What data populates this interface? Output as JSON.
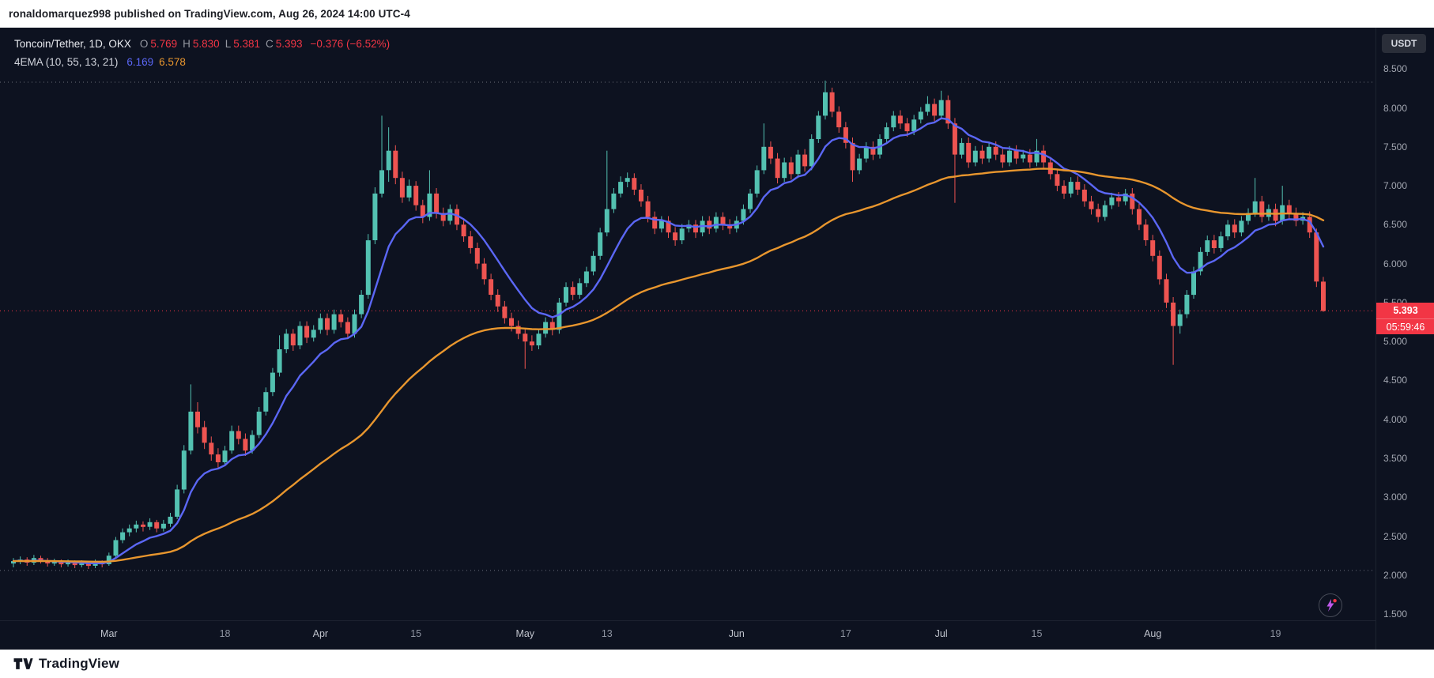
{
  "header": {
    "publish_line": "ronaldomarquez998 published on TradingView.com, Aug 26, 2024 14:00 UTC-4"
  },
  "footer": {
    "brand": "TradingView"
  },
  "legend": {
    "symbol": "Toncoin/Tether, 1D, OKX",
    "o_label": "O",
    "o": "5.769",
    "h_label": "H",
    "h": "5.830",
    "l_label": "L",
    "l": "5.381",
    "c_label": "C",
    "c": "5.393",
    "change": "−0.376 (−6.52%)",
    "indicator": "4EMA (10, 55, 13, 21)",
    "ema_fast": "6.169",
    "ema_slow": "6.578"
  },
  "axis": {
    "currency": "USDT",
    "price_ticks": [
      "8.500",
      "8.000",
      "7.500",
      "7.000",
      "6.500",
      "6.000",
      "5.500",
      "5.000",
      "4.500",
      "4.000",
      "3.500",
      "3.000",
      "2.500",
      "2.000",
      "1.500"
    ],
    "last_price": "5.393",
    "countdown": "05:59:46"
  },
  "chart_data": {
    "type": "candlestick",
    "title": "Toncoin/Tether, 1D, OKX",
    "ylabel": "Price (USDT)",
    "ylim": [
      1.42,
      9.03
    ],
    "grid": false,
    "current_price": 5.393,
    "last_candle": {
      "open": 5.769,
      "high": 5.83,
      "low": 5.381,
      "close": 5.393,
      "change": -0.376,
      "change_pct": -6.52
    },
    "colors": {
      "up": "#53c1b1",
      "down": "#ee5451",
      "badge": "#f23645",
      "level_gray": "#6a6e79"
    },
    "overlays": [
      {
        "name": "EMA fast",
        "period": 10,
        "color": "#5b67f5",
        "value": 6.169
      },
      {
        "name": "EMA slow",
        "period": 55,
        "color": "#e8962e",
        "value": 6.578
      }
    ],
    "dotted_levels": [
      {
        "price": 8.33,
        "color": "#6a6e79"
      },
      {
        "price": 5.393,
        "color": "#f23645"
      },
      {
        "price": 2.06,
        "color": "#6a6e79"
      }
    ],
    "time_ticks": [
      {
        "label": "Mar",
        "index": 14,
        "month": true
      },
      {
        "label": "18",
        "index": 31,
        "month": false
      },
      {
        "label": "Apr",
        "index": 45,
        "month": true
      },
      {
        "label": "15",
        "index": 59,
        "month": false
      },
      {
        "label": "May",
        "index": 75,
        "month": true
      },
      {
        "label": "13",
        "index": 87,
        "month": false
      },
      {
        "label": "Jun",
        "index": 106,
        "month": true
      },
      {
        "label": "17",
        "index": 122,
        "month": false
      },
      {
        "label": "Jul",
        "index": 136,
        "month": true
      },
      {
        "label": "15",
        "index": 150,
        "month": false
      },
      {
        "label": "Aug",
        "index": 167,
        "month": true
      },
      {
        "label": "19",
        "index": 185,
        "month": false
      }
    ],
    "candles": [
      [
        2.15,
        2.22,
        2.1,
        2.18
      ],
      [
        2.18,
        2.24,
        2.14,
        2.2
      ],
      [
        2.2,
        2.23,
        2.12,
        2.16
      ],
      [
        2.16,
        2.26,
        2.13,
        2.22
      ],
      [
        2.22,
        2.25,
        2.15,
        2.19
      ],
      [
        2.19,
        2.22,
        2.11,
        2.15
      ],
      [
        2.15,
        2.21,
        2.12,
        2.17
      ],
      [
        2.17,
        2.2,
        2.1,
        2.14
      ],
      [
        2.14,
        2.2,
        2.11,
        2.16
      ],
      [
        2.16,
        2.19,
        2.09,
        2.13
      ],
      [
        2.13,
        2.19,
        2.1,
        2.15
      ],
      [
        2.15,
        2.18,
        2.08,
        2.12
      ],
      [
        2.12,
        2.2,
        2.09,
        2.16
      ],
      [
        2.16,
        2.19,
        2.1,
        2.14
      ],
      [
        2.14,
        2.29,
        2.12,
        2.25
      ],
      [
        2.25,
        2.49,
        2.22,
        2.45
      ],
      [
        2.45,
        2.6,
        2.41,
        2.55
      ],
      [
        2.55,
        2.65,
        2.5,
        2.6
      ],
      [
        2.6,
        2.7,
        2.55,
        2.65
      ],
      [
        2.65,
        2.69,
        2.56,
        2.62
      ],
      [
        2.62,
        2.73,
        2.58,
        2.68
      ],
      [
        2.68,
        2.71,
        2.55,
        2.6
      ],
      [
        2.6,
        2.71,
        2.56,
        2.66
      ],
      [
        2.66,
        2.8,
        2.62,
        2.75
      ],
      [
        2.75,
        3.16,
        2.72,
        3.1
      ],
      [
        3.1,
        3.67,
        3.05,
        3.6
      ],
      [
        3.6,
        4.45,
        3.55,
        4.1
      ],
      [
        4.1,
        4.22,
        3.82,
        3.9
      ],
      [
        3.9,
        3.98,
        3.62,
        3.7
      ],
      [
        3.7,
        3.78,
        3.47,
        3.55
      ],
      [
        3.55,
        3.63,
        3.38,
        3.45
      ],
      [
        3.45,
        3.66,
        3.41,
        3.6
      ],
      [
        3.6,
        3.92,
        3.56,
        3.85
      ],
      [
        3.85,
        3.92,
        3.68,
        3.75
      ],
      [
        3.75,
        3.82,
        3.53,
        3.6
      ],
      [
        3.6,
        3.86,
        3.56,
        3.8
      ],
      [
        3.8,
        4.16,
        3.76,
        4.1
      ],
      [
        4.1,
        4.41,
        4.05,
        4.35
      ],
      [
        4.35,
        4.66,
        4.3,
        4.6
      ],
      [
        4.6,
        5.08,
        4.55,
        4.9
      ],
      [
        4.9,
        5.16,
        4.85,
        5.1
      ],
      [
        5.1,
        5.16,
        4.88,
        4.95
      ],
      [
        4.95,
        5.26,
        4.9,
        5.2
      ],
      [
        5.2,
        5.26,
        4.98,
        5.05
      ],
      [
        5.05,
        5.21,
        5.0,
        5.15
      ],
      [
        5.15,
        5.36,
        5.1,
        5.3
      ],
      [
        5.3,
        5.36,
        5.08,
        5.15
      ],
      [
        5.15,
        5.41,
        5.1,
        5.35
      ],
      [
        5.35,
        5.41,
        5.18,
        5.25
      ],
      [
        5.25,
        5.31,
        5.03,
        5.1
      ],
      [
        5.1,
        5.41,
        5.05,
        5.35
      ],
      [
        5.35,
        5.66,
        5.3,
        5.6
      ],
      [
        5.6,
        6.38,
        5.55,
        6.3
      ],
      [
        6.3,
        6.98,
        6.25,
        6.9
      ],
      [
        6.9,
        7.9,
        6.85,
        7.2
      ],
      [
        7.2,
        7.75,
        7.05,
        7.45
      ],
      [
        7.45,
        7.52,
        7.02,
        7.1
      ],
      [
        7.1,
        7.18,
        6.78,
        6.85
      ],
      [
        6.85,
        7.08,
        6.8,
        7.0
      ],
      [
        7.0,
        7.06,
        6.68,
        6.75
      ],
      [
        6.75,
        6.82,
        6.52,
        6.6
      ],
      [
        6.6,
        7.2,
        6.55,
        6.9
      ],
      [
        6.9,
        6.97,
        6.58,
        6.65
      ],
      [
        6.65,
        6.72,
        6.48,
        6.55
      ],
      [
        6.55,
        6.76,
        6.5,
        6.7
      ],
      [
        6.7,
        6.76,
        6.43,
        6.5
      ],
      [
        6.5,
        6.57,
        6.28,
        6.35
      ],
      [
        6.35,
        6.42,
        6.13,
        6.2
      ],
      [
        6.2,
        6.27,
        5.93,
        6.0
      ],
      [
        6.0,
        6.07,
        5.73,
        5.8
      ],
      [
        5.8,
        5.87,
        5.53,
        5.6
      ],
      [
        5.6,
        5.67,
        5.38,
        5.45
      ],
      [
        5.45,
        5.52,
        5.23,
        5.3
      ],
      [
        5.3,
        5.37,
        5.13,
        5.2
      ],
      [
        5.2,
        5.27,
        5.03,
        5.1
      ],
      [
        5.1,
        5.17,
        4.65,
        5.0
      ],
      [
        5.0,
        5.08,
        4.88,
        4.95
      ],
      [
        4.95,
        5.16,
        4.9,
        5.1
      ],
      [
        5.1,
        5.31,
        5.05,
        5.25
      ],
      [
        5.25,
        5.31,
        5.08,
        5.15
      ],
      [
        5.15,
        5.56,
        5.1,
        5.5
      ],
      [
        5.5,
        5.76,
        5.45,
        5.7
      ],
      [
        5.7,
        5.77,
        5.53,
        5.6
      ],
      [
        5.6,
        5.81,
        5.55,
        5.75
      ],
      [
        5.75,
        5.96,
        5.7,
        5.9
      ],
      [
        5.9,
        6.16,
        5.85,
        6.1
      ],
      [
        6.1,
        6.46,
        6.05,
        6.4
      ],
      [
        6.4,
        7.45,
        6.35,
        6.7
      ],
      [
        6.7,
        6.97,
        6.65,
        6.9
      ],
      [
        6.9,
        7.12,
        6.85,
        7.05
      ],
      [
        7.05,
        7.17,
        6.98,
        7.1
      ],
      [
        7.1,
        7.16,
        6.88,
        6.95
      ],
      [
        6.95,
        7.02,
        6.73,
        6.8
      ],
      [
        6.8,
        6.87,
        6.53,
        6.6
      ],
      [
        6.6,
        6.67,
        6.38,
        6.45
      ],
      [
        6.45,
        6.61,
        6.4,
        6.55
      ],
      [
        6.55,
        6.61,
        6.33,
        6.4
      ],
      [
        6.4,
        6.47,
        6.23,
        6.3
      ],
      [
        6.3,
        6.51,
        6.25,
        6.45
      ],
      [
        6.45,
        6.56,
        6.4,
        6.5
      ],
      [
        6.5,
        6.56,
        6.33,
        6.4
      ],
      [
        6.4,
        6.61,
        6.35,
        6.55
      ],
      [
        6.55,
        6.61,
        6.38,
        6.45
      ],
      [
        6.45,
        6.66,
        6.4,
        6.6
      ],
      [
        6.6,
        6.66,
        6.43,
        6.5
      ],
      [
        6.5,
        6.57,
        6.38,
        6.45
      ],
      [
        6.45,
        6.61,
        6.4,
        6.55
      ],
      [
        6.55,
        6.76,
        6.5,
        6.7
      ],
      [
        6.7,
        6.96,
        6.65,
        6.9
      ],
      [
        6.9,
        7.26,
        6.85,
        7.2
      ],
      [
        7.2,
        7.8,
        7.15,
        7.5
      ],
      [
        7.5,
        7.57,
        7.28,
        7.35
      ],
      [
        7.35,
        7.42,
        7.03,
        7.1
      ],
      [
        7.1,
        7.36,
        7.05,
        7.3
      ],
      [
        7.3,
        7.37,
        7.08,
        7.15
      ],
      [
        7.15,
        7.46,
        7.1,
        7.4
      ],
      [
        7.4,
        7.47,
        7.18,
        7.25
      ],
      [
        7.25,
        7.66,
        7.2,
        7.6
      ],
      [
        7.6,
        7.96,
        7.55,
        7.9
      ],
      [
        7.9,
        8.35,
        7.85,
        8.2
      ],
      [
        8.2,
        8.26,
        7.88,
        7.95
      ],
      [
        7.95,
        8.02,
        7.68,
        7.75
      ],
      [
        7.75,
        7.82,
        7.48,
        7.55
      ],
      [
        7.55,
        7.62,
        7.05,
        7.2
      ],
      [
        7.2,
        7.41,
        7.15,
        7.35
      ],
      [
        7.35,
        7.56,
        7.3,
        7.5
      ],
      [
        7.5,
        7.57,
        7.33,
        7.4
      ],
      [
        7.4,
        7.66,
        7.35,
        7.6
      ],
      [
        7.6,
        7.81,
        7.55,
        7.75
      ],
      [
        7.75,
        7.96,
        7.7,
        7.9
      ],
      [
        7.9,
        7.97,
        7.73,
        7.8
      ],
      [
        7.8,
        7.87,
        7.63,
        7.7
      ],
      [
        7.7,
        7.91,
        7.65,
        7.85
      ],
      [
        7.85,
        8.01,
        7.8,
        7.95
      ],
      [
        7.95,
        8.15,
        7.9,
        8.05
      ],
      [
        8.05,
        8.12,
        7.83,
        7.9
      ],
      [
        7.9,
        8.22,
        7.85,
        8.1
      ],
      [
        8.1,
        8.16,
        7.73,
        7.8
      ],
      [
        7.8,
        7.87,
        6.78,
        7.4
      ],
      [
        7.4,
        7.61,
        7.35,
        7.55
      ],
      [
        7.55,
        7.62,
        7.23,
        7.3
      ],
      [
        7.3,
        7.51,
        7.25,
        7.45
      ],
      [
        7.45,
        7.52,
        7.28,
        7.35
      ],
      [
        7.35,
        7.56,
        7.3,
        7.5
      ],
      [
        7.5,
        7.57,
        7.33,
        7.4
      ],
      [
        7.4,
        7.47,
        7.23,
        7.3
      ],
      [
        7.3,
        7.51,
        7.25,
        7.45
      ],
      [
        7.45,
        7.52,
        7.28,
        7.35
      ],
      [
        7.35,
        7.46,
        7.3,
        7.4
      ],
      [
        7.4,
        7.47,
        7.23,
        7.3
      ],
      [
        7.3,
        7.6,
        7.25,
        7.45
      ],
      [
        7.45,
        7.52,
        7.23,
        7.3
      ],
      [
        7.3,
        7.37,
        7.08,
        7.15
      ],
      [
        7.15,
        7.22,
        6.93,
        7.0
      ],
      [
        7.0,
        7.07,
        6.83,
        6.9
      ],
      [
        6.9,
        7.11,
        6.85,
        7.05
      ],
      [
        7.05,
        7.12,
        6.88,
        6.95
      ],
      [
        6.95,
        7.02,
        6.73,
        6.8
      ],
      [
        6.8,
        6.87,
        6.63,
        6.7
      ],
      [
        6.7,
        6.77,
        6.53,
        6.6
      ],
      [
        6.6,
        6.81,
        6.55,
        6.75
      ],
      [
        6.75,
        6.91,
        6.7,
        6.85
      ],
      [
        6.85,
        6.92,
        6.73,
        6.8
      ],
      [
        6.8,
        6.96,
        6.75,
        6.9
      ],
      [
        6.9,
        6.97,
        6.63,
        6.7
      ],
      [
        6.7,
        6.77,
        6.43,
        6.5
      ],
      [
        6.5,
        6.57,
        6.23,
        6.3
      ],
      [
        6.3,
        6.37,
        6.03,
        6.1
      ],
      [
        6.1,
        6.17,
        5.73,
        5.8
      ],
      [
        5.8,
        5.87,
        5.43,
        5.5
      ],
      [
        5.5,
        5.57,
        4.7,
        5.2
      ],
      [
        5.2,
        5.41,
        5.1,
        5.35
      ],
      [
        5.35,
        5.66,
        5.3,
        5.6
      ],
      [
        5.6,
        5.96,
        5.55,
        5.9
      ],
      [
        5.9,
        6.21,
        5.85,
        6.15
      ],
      [
        6.15,
        6.36,
        6.1,
        6.3
      ],
      [
        6.3,
        6.37,
        6.13,
        6.2
      ],
      [
        6.2,
        6.41,
        6.15,
        6.35
      ],
      [
        6.35,
        6.56,
        6.3,
        6.5
      ],
      [
        6.5,
        6.57,
        6.33,
        6.4
      ],
      [
        6.4,
        6.61,
        6.35,
        6.55
      ],
      [
        6.55,
        6.71,
        6.5,
        6.65
      ],
      [
        6.65,
        7.1,
        6.6,
        6.8
      ],
      [
        6.8,
        6.87,
        6.53,
        6.6
      ],
      [
        6.6,
        6.76,
        6.55,
        6.7
      ],
      [
        6.7,
        6.77,
        6.48,
        6.55
      ],
      [
        6.55,
        7.0,
        6.5,
        6.75
      ],
      [
        6.75,
        6.82,
        6.58,
        6.65
      ],
      [
        6.65,
        6.72,
        6.48,
        6.55
      ],
      [
        6.55,
        6.66,
        6.5,
        6.6
      ],
      [
        6.6,
        6.67,
        6.33,
        6.4
      ],
      [
        6.4,
        6.45,
        5.7,
        5.77
      ],
      [
        5.769,
        5.83,
        5.381,
        5.393
      ]
    ]
  }
}
